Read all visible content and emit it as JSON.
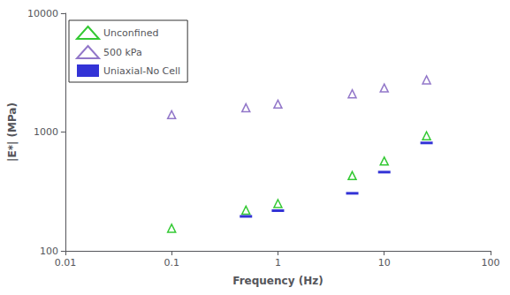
{
  "chart_data": {
    "type": "scatter",
    "xlabel": "Frequency (Hz)",
    "ylabel": "|E*| (MPa)",
    "log": true,
    "xlim": [
      0.01,
      100
    ],
    "ylim": [
      100,
      10000
    ],
    "xticks": [
      0.01,
      0.1,
      1,
      10,
      100
    ],
    "yticks": [
      100,
      1000,
      10000
    ],
    "grid": false,
    "legend": "upper left",
    "series": [
      {
        "name": "Unconfined",
        "color": "#00bb00",
        "marker": "triangle-open",
        "x": [
          0.1,
          0.5,
          1.0,
          5.0,
          10.0,
          25.0
        ],
        "values": [
          155,
          220,
          250,
          430,
          570,
          930
        ]
      },
      {
        "name": "500 kPa",
        "color": "#7755bb",
        "marker": "triangle-open",
        "x": [
          0.1,
          0.5,
          1.0,
          5.0,
          10.0,
          25.0
        ],
        "values": [
          1400,
          1600,
          1720,
          2100,
          2350,
          2750
        ]
      },
      {
        "name": "Uniaxial-No Cell",
        "color": "#0000cc",
        "marker": "hline",
        "x": [
          0.5,
          1.0,
          5.0,
          10.0,
          25.0
        ],
        "values": [
          195,
          218,
          305,
          460,
          810
        ]
      }
    ]
  }
}
